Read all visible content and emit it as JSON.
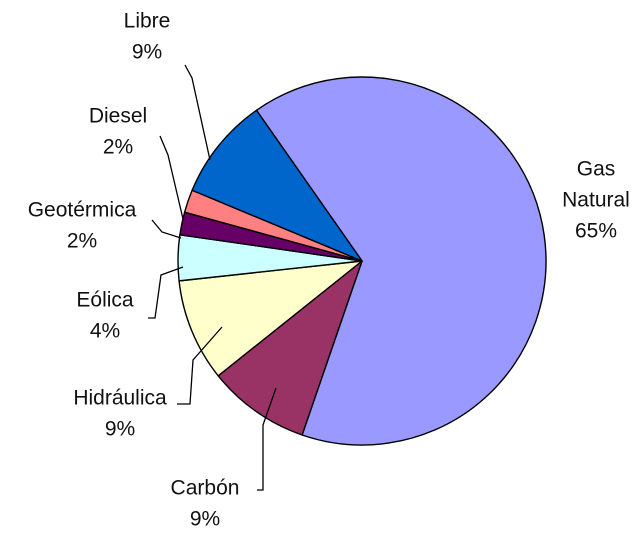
{
  "chart_data": {
    "type": "pie",
    "title": "",
    "slices": [
      {
        "label_lines": [
          "Gas",
          "Natural"
        ],
        "percent_label": "65%",
        "value": 65,
        "color": "#9999ff"
      },
      {
        "label_lines": [
          "Carbón"
        ],
        "percent_label": "9%",
        "value": 9,
        "color": "#993366"
      },
      {
        "label_lines": [
          "Hidráulica"
        ],
        "percent_label": "9%",
        "value": 9,
        "color": "#ffffcc"
      },
      {
        "label_lines": [
          "Eólica"
        ],
        "percent_label": "4%",
        "value": 4,
        "color": "#ccffff"
      },
      {
        "label_lines": [
          "Geotérmica"
        ],
        "percent_label": "2%",
        "value": 2,
        "color": "#660066"
      },
      {
        "label_lines": [
          "Diesel"
        ],
        "percent_label": "2%",
        "value": 2,
        "color": "#ff8080"
      },
      {
        "label_lines": [
          "Libre"
        ],
        "percent_label": "9%",
        "value": 9,
        "color": "#0066cc"
      }
    ],
    "legend": "none",
    "label_position": "outside-with-leader-lines"
  }
}
